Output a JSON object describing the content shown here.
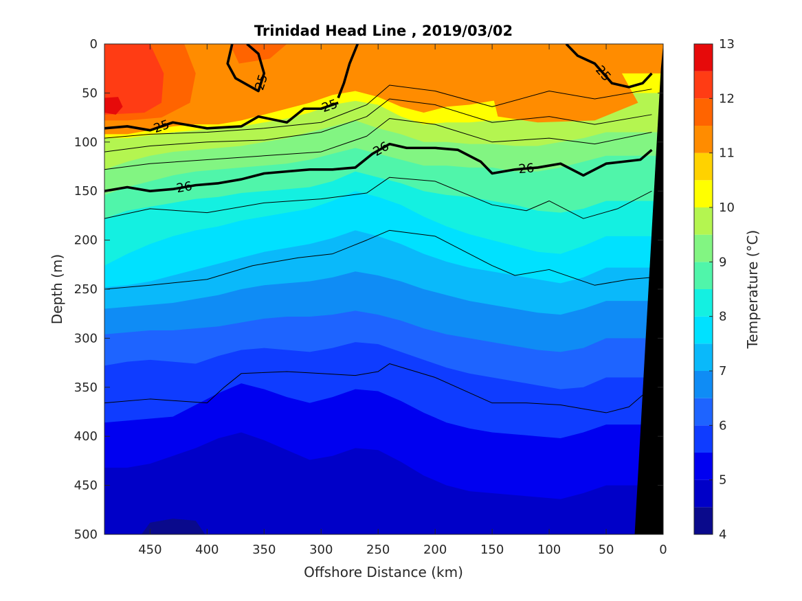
{
  "chart_data": {
    "type": "heatmap",
    "subtype": "filled-contour",
    "title": "Trinidad Head Line , 2019/03/02",
    "xlabel": "Offshore Distance (km)",
    "ylabel": "Depth (m)",
    "xlim": [
      490,
      0
    ],
    "x_reversed": true,
    "ylim": [
      500,
      0
    ],
    "y_reversed": true,
    "x_ticks": [
      450,
      400,
      350,
      300,
      250,
      200,
      150,
      100,
      50,
      0
    ],
    "y_ticks": [
      0,
      50,
      100,
      150,
      200,
      250,
      300,
      350,
      400,
      450,
      500
    ],
    "colorbar": {
      "label": "Temperature (°C)",
      "ticks": [
        4,
        5,
        6,
        7,
        8,
        9,
        10,
        11,
        12,
        13
      ],
      "levels": [
        4,
        4.5,
        5,
        5.5,
        6,
        6.5,
        7,
        7.5,
        8,
        8.5,
        9,
        9.5,
        10,
        10.5,
        11,
        11.5,
        12,
        12.5,
        13
      ],
      "colors": [
        "#0a0a8c",
        "#0000c8",
        "#0000f0",
        "#0f3cff",
        "#1e64ff",
        "#0f8cf5",
        "#0ab9fa",
        "#00e1ff",
        "#14f0e1",
        "#50f5aa",
        "#82f582",
        "#b4f550",
        "#ffff00",
        "#ffd200",
        "#ff8c00",
        "#ff6400",
        "#ff3c14",
        "#e60a0a",
        "#b40000"
      ]
    },
    "temperature_surfaces": [
      {
        "upper": 10.5,
        "depths": [
          92,
          92,
          88,
          84,
          82,
          82,
          78,
          72,
          66,
          60,
          52,
          48,
          54,
          64,
          70,
          64,
          62,
          58,
          56,
          56,
          54,
          40,
          30
        ]
      },
      {
        "upper": 10,
        "depths": [
          96,
          96,
          93,
          90,
          88,
          86,
          84,
          80,
          76,
          70,
          62,
          58,
          62,
          74,
          82,
          80,
          80,
          78,
          78,
          76,
          74,
          60,
          50
        ]
      },
      {
        "upper": 9.5,
        "depths": [
          128,
          120,
          114,
          110,
          108,
          106,
          104,
          100,
          96,
          90,
          84,
          78,
          86,
          92,
          100,
          100,
          102,
          102,
          104,
          104,
          100,
          96,
          90
        ]
      },
      {
        "upper": 9,
        "depths": [
          154,
          146,
          140,
          134,
          130,
          128,
          126,
          124,
          122,
          118,
          112,
          106,
          112,
          118,
          124,
          124,
          126,
          126,
          130,
          130,
          126,
          120,
          114
        ]
      },
      {
        "upper": 8.5,
        "depths": [
          178,
          170,
          166,
          162,
          158,
          156,
          152,
          150,
          148,
          146,
          140,
          130,
          136,
          142,
          150,
          154,
          156,
          160,
          164,
          170,
          172,
          168,
          160
        ]
      },
      {
        "upper": 8,
        "depths": [
          226,
          214,
          204,
          196,
          190,
          186,
          180,
          176,
          172,
          168,
          160,
          150,
          156,
          164,
          176,
          186,
          194,
          200,
          206,
          212,
          214,
          206,
          196
        ]
      },
      {
        "upper": 7.5,
        "depths": [
          248,
          246,
          242,
          236,
          230,
          224,
          218,
          212,
          208,
          204,
          198,
          190,
          196,
          204,
          214,
          222,
          228,
          232,
          236,
          240,
          244,
          238,
          228
        ]
      },
      {
        "upper": 7,
        "depths": [
          270,
          268,
          266,
          264,
          260,
          256,
          250,
          246,
          244,
          242,
          238,
          232,
          236,
          242,
          250,
          256,
          262,
          266,
          270,
          274,
          276,
          270,
          262
        ]
      },
      {
        "upper": 6.5,
        "depths": [
          296,
          294,
          292,
          292,
          290,
          288,
          284,
          280,
          278,
          278,
          276,
          272,
          276,
          282,
          290,
          296,
          300,
          304,
          308,
          312,
          314,
          310,
          300
        ]
      },
      {
        "upper": 6,
        "depths": [
          328,
          324,
          322,
          324,
          326,
          318,
          312,
          310,
          312,
          314,
          310,
          304,
          306,
          314,
          322,
          330,
          336,
          340,
          344,
          348,
          352,
          350,
          340
        ]
      },
      {
        "upper": 5.5,
        "depths": [
          386,
          384,
          382,
          380,
          368,
          356,
          346,
          352,
          360,
          366,
          360,
          352,
          354,
          364,
          376,
          386,
          392,
          396,
          398,
          400,
          402,
          396,
          388
        ]
      },
      {
        "upper": 5,
        "depths": [
          432,
          432,
          428,
          420,
          412,
          402,
          396,
          404,
          414,
          424,
          420,
          412,
          414,
          426,
          440,
          450,
          456,
          458,
          460,
          462,
          464,
          458,
          450
        ]
      },
      {
        "upper": 4.5,
        "depths": [
          520,
          520,
          488,
          484,
          486,
          520,
          520,
          520,
          520,
          520,
          520,
          520,
          520,
          520,
          520,
          520,
          520,
          506,
          500,
          520,
          520,
          520,
          520
        ]
      }
    ],
    "surface_x": [
      490,
      470,
      450,
      430,
      410,
      390,
      370,
      350,
      330,
      310,
      290,
      270,
      250,
      230,
      210,
      190,
      170,
      150,
      130,
      110,
      90,
      70,
      50
    ],
    "warm_patches": [
      {
        "temp": 11.5,
        "points": [
          [
            490,
            0
          ],
          [
            420,
            0
          ],
          [
            410,
            30
          ],
          [
            415,
            60
          ],
          [
            440,
            75
          ],
          [
            470,
            78
          ],
          [
            490,
            78
          ]
        ]
      },
      {
        "temp": 11.5,
        "points": [
          [
            380,
            0
          ],
          [
            330,
            0
          ],
          [
            345,
            15
          ],
          [
            372,
            20
          ]
        ]
      },
      {
        "temp": 11,
        "points": [
          [
            150,
            50
          ],
          [
            120,
            12
          ],
          [
            80,
            8
          ],
          [
            40,
            22
          ],
          [
            22,
            60
          ],
          [
            60,
            78
          ],
          [
            110,
            80
          ],
          [
            145,
            74
          ]
        ]
      },
      {
        "temp": 12,
        "points": [
          [
            490,
            0
          ],
          [
            450,
            0
          ],
          [
            438,
            30
          ],
          [
            440,
            60
          ],
          [
            455,
            70
          ],
          [
            490,
            72
          ]
        ]
      },
      {
        "temp": 12.5,
        "points": [
          [
            490,
            55
          ],
          [
            478,
            54
          ],
          [
            474,
            64
          ],
          [
            480,
            72
          ],
          [
            490,
            70
          ]
        ]
      }
    ],
    "contours": [
      {
        "label": "25",
        "style": "thick",
        "x": [
          490,
          470,
          450,
          430,
          400,
          370,
          355,
          330,
          315,
          300,
          285
        ],
        "y": [
          86,
          84,
          88,
          80,
          86,
          84,
          74,
          80,
          66,
          66,
          60
        ]
      },
      {
        "label": "25",
        "style": "thick",
        "x": [
          378,
          382,
          375,
          355,
          350,
          355,
          365
        ],
        "y": [
          0,
          20,
          35,
          48,
          30,
          10,
          0
        ]
      },
      {
        "label": "25",
        "style": "thick",
        "x": [
          285,
          280,
          275,
          268
        ],
        "y": [
          55,
          40,
          20,
          0
        ]
      },
      {
        "label": "25",
        "style": "thick",
        "x": [
          85,
          75,
          60,
          45,
          30,
          18,
          10
        ],
        "y": [
          0,
          12,
          20,
          40,
          44,
          40,
          30
        ]
      },
      {
        "label": "26",
        "style": "thick",
        "x": [
          490,
          470,
          450,
          430,
          410,
          390,
          370,
          350,
          330,
          310,
          290,
          270,
          255,
          240,
          225,
          200,
          180,
          160,
          150,
          130,
          110,
          90,
          70,
          50,
          35,
          20,
          10
        ],
        "y": [
          150,
          146,
          150,
          148,
          144,
          142,
          138,
          132,
          130,
          128,
          128,
          126,
          112,
          102,
          106,
          106,
          108,
          120,
          132,
          128,
          126,
          122,
          134,
          122,
          120,
          118,
          108
        ]
      },
      {
        "label": "",
        "style": "thin",
        "x": [
          490,
          450,
          400,
          350,
          300,
          260,
          240,
          200,
          150,
          100,
          60,
          10
        ],
        "y": [
          96,
          92,
          90,
          86,
          80,
          62,
          42,
          48,
          64,
          48,
          56,
          46
        ]
      },
      {
        "label": "",
        "style": "thin",
        "x": [
          490,
          450,
          400,
          350,
          300,
          260,
          240,
          200,
          150,
          100,
          60,
          10
        ],
        "y": [
          110,
          104,
          100,
          98,
          90,
          74,
          56,
          62,
          80,
          74,
          82,
          72
        ]
      },
      {
        "label": "",
        "style": "thin",
        "x": [
          490,
          450,
          400,
          350,
          300,
          260,
          240,
          200,
          150,
          100,
          60,
          10
        ],
        "y": [
          128,
          122,
          118,
          114,
          110,
          94,
          76,
          82,
          100,
          96,
          102,
          90
        ]
      },
      {
        "label": "",
        "style": "thin",
        "x": [
          490,
          450,
          400,
          350,
          300,
          260,
          240,
          200,
          150,
          120,
          100,
          70,
          40,
          10
        ],
        "y": [
          178,
          168,
          172,
          162,
          158,
          152,
          136,
          140,
          164,
          170,
          160,
          178,
          168,
          150
        ]
      },
      {
        "label": "",
        "style": "thin",
        "x": [
          490,
          450,
          400,
          360,
          320,
          290,
          260,
          240,
          200,
          150,
          130,
          100,
          60,
          30,
          10
        ],
        "y": [
          250,
          246,
          240,
          226,
          218,
          214,
          200,
          190,
          196,
          226,
          236,
          230,
          246,
          240,
          238
        ]
      },
      {
        "label": "",
        "style": "thin",
        "x": [
          490,
          450,
          400,
          385,
          370,
          330,
          300,
          270,
          250,
          240,
          200,
          150,
          120,
          90,
          70,
          50,
          30,
          10
        ],
        "y": [
          366,
          362,
          366,
          350,
          336,
          334,
          336,
          338,
          334,
          326,
          340,
          366,
          366,
          368,
          372,
          376,
          370,
          350
        ]
      }
    ],
    "contour_label_values": [
      "25",
      "25",
      "25",
      "25",
      "26",
      "26",
      "26"
    ],
    "seafloor": {
      "color": "#000000",
      "points": [
        [
          0,
          0
        ],
        [
          0,
          500
        ],
        [
          25,
          500
        ],
        [
          2,
          25
        ]
      ]
    }
  }
}
